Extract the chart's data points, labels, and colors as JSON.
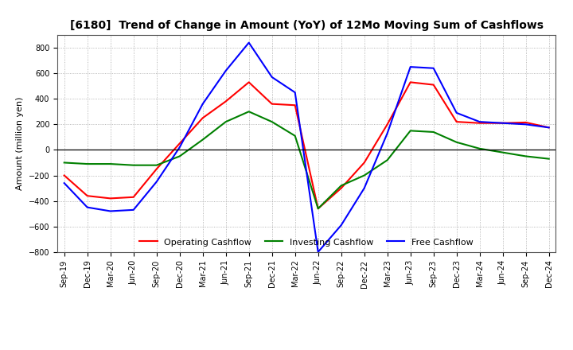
{
  "title": "[6180]  Trend of Change in Amount (YoY) of 12Mo Moving Sum of Cashflows",
  "ylabel": "Amount (million yen)",
  "x_labels": [
    "Sep-19",
    "Dec-19",
    "Mar-20",
    "Jun-20",
    "Sep-20",
    "Dec-20",
    "Mar-21",
    "Jun-21",
    "Sep-21",
    "Dec-21",
    "Mar-22",
    "Jun-22",
    "Sep-22",
    "Dec-22",
    "Mar-23",
    "Jun-23",
    "Sep-23",
    "Dec-23",
    "Mar-24",
    "Jun-24",
    "Sep-24",
    "Dec-24"
  ],
  "operating_cashflow": [
    -200,
    -360,
    -380,
    -370,
    -150,
    50,
    250,
    380,
    530,
    360,
    350,
    -460,
    -300,
    -100,
    200,
    530,
    510,
    220,
    210,
    210,
    215,
    175
  ],
  "investing_cashflow": [
    -100,
    -110,
    -110,
    -120,
    -120,
    -50,
    80,
    220,
    300,
    220,
    110,
    -460,
    -280,
    -200,
    -80,
    150,
    140,
    60,
    10,
    -20,
    -50,
    -70
  ],
  "free_cashflow": [
    -260,
    -450,
    -480,
    -470,
    -250,
    20,
    360,
    620,
    840,
    570,
    450,
    -800,
    -590,
    -300,
    130,
    650,
    640,
    290,
    220,
    210,
    200,
    175
  ],
  "operating_color": "#ff0000",
  "investing_color": "#008000",
  "free_color": "#0000ff",
  "ylim": [
    -800,
    900
  ],
  "yticks": [
    -800,
    -600,
    -400,
    -200,
    0,
    200,
    400,
    600,
    800
  ],
  "background_color": "#ffffff",
  "grid_color": "#999999",
  "title_fontsize": 10,
  "axis_fontsize": 8,
  "tick_fontsize": 7,
  "legend_fontsize": 8
}
